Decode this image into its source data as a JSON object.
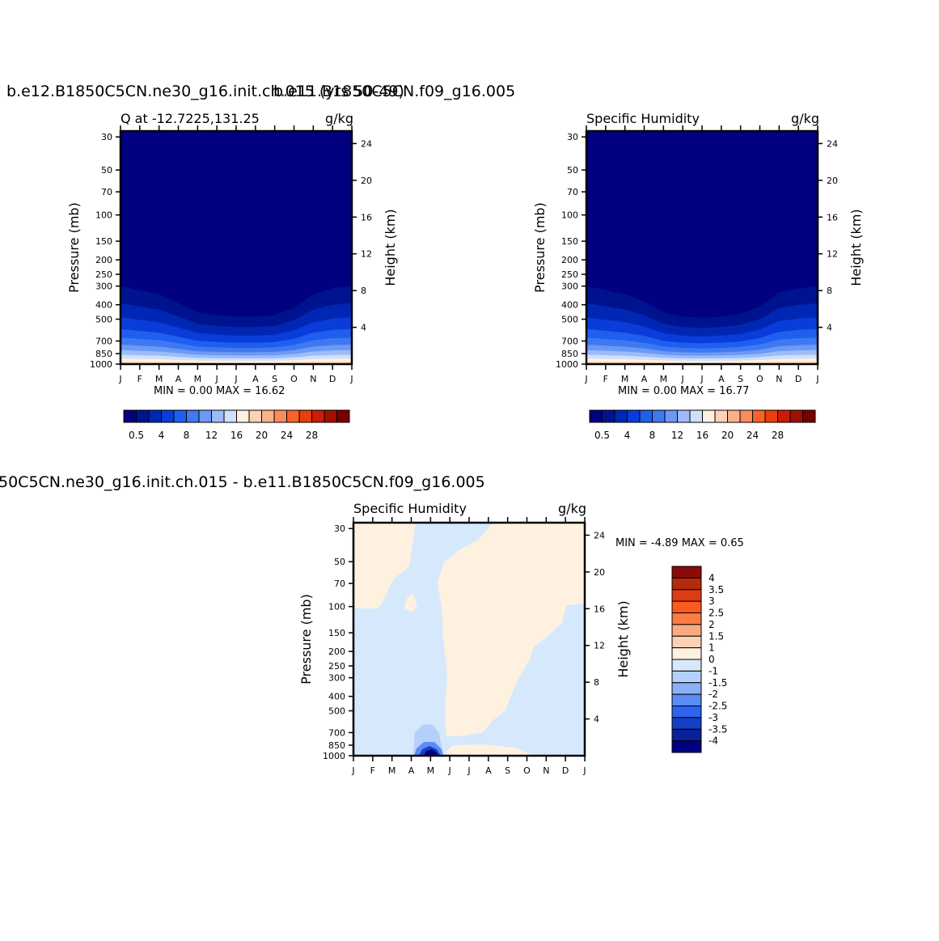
{
  "panels": {
    "top_left": {
      "case_title": "b.e12.B1850C5CN.ne30_g16.init.ch.015 (yrs 50-49)",
      "left_title": "Q at -12.7225,131.25",
      "units": "g/kg",
      "minmax": "MIN =    0.00 MAX =   16.62"
    },
    "top_right": {
      "case_title": "b.e11.B1850C5CN.f09_g16.005",
      "left_title": "Specific Humidity",
      "units": "g/kg",
      "minmax": "MIN =    0.00 MAX =   16.77"
    },
    "bottom": {
      "case_title": "50C5CN.ne30_g16.init.ch.015 - b.e11.B1850C5CN.f09_g16.005",
      "left_title": "Specific Humidity",
      "units": "g/kg",
      "minmax": "MIN =  -4.89 MAX =    0.65"
    }
  },
  "axes": {
    "ylabel": "Pressure (mb)",
    "y2label": "Height (km)",
    "pressure_ticks": [
      "30",
      "50",
      "70",
      "100",
      "150",
      "200",
      "250",
      "300",
      "400",
      "500",
      "700",
      "850",
      "1000"
    ],
    "height_ticks": [
      "24",
      "20",
      "16",
      "12",
      "8",
      "4"
    ],
    "month_ticks": [
      "J",
      "F",
      "M",
      "A",
      "M",
      "J",
      "J",
      "A",
      "S",
      "O",
      "N",
      "D",
      "J"
    ]
  },
  "colorbars": {
    "abs_labels": [
      "0.5",
      "4",
      "8",
      "12",
      "16",
      "20",
      "24",
      "28"
    ],
    "abs_colors": [
      "#000080",
      "#00138f",
      "#0027b3",
      "#0a3cd9",
      "#1f5ff0",
      "#3e79f2",
      "#6b99f5",
      "#9dbcf7",
      "#cfe0fa",
      "#fff1e0",
      "#fcd2b4",
      "#fcb18a",
      "#fc8b5c",
      "#fa6229",
      "#eb3d0d",
      "#c81e05",
      "#a00f00",
      "#780000"
    ],
    "diff_labels": [
      "4",
      "3.5",
      "3",
      "2.5",
      "2",
      "1.5",
      "1",
      "0",
      "-1",
      "-1.5",
      "-2",
      "-2.5",
      "-3",
      "-3.5",
      "-4"
    ],
    "diff_colors": [
      "#8c0a0a",
      "#b42a0a",
      "#dc3c14",
      "#fa5a1e",
      "#fa7c46",
      "#fcaa82",
      "#fcd2b4",
      "#fff1e0",
      "#d6e8fc",
      "#b4d0fa",
      "#8cb0f8",
      "#5a8cf5",
      "#2d64f0",
      "#1440c8",
      "#0a2096",
      "#000080"
    ]
  },
  "chart_data": [
    {
      "type": "heatmap",
      "title": "b.e12.B1850C5CN.ne30_g16.init.ch.015 (yrs 50-49)",
      "subtitle": "Q at -12.7225,131.25",
      "units": "g/kg",
      "x": [
        "J",
        "F",
        "M",
        "A",
        "M",
        "J",
        "J",
        "A",
        "S",
        "O",
        "N",
        "D",
        "J"
      ],
      "y_pressure_mb": [
        30,
        50,
        70,
        100,
        150,
        200,
        250,
        300,
        400,
        500,
        700,
        850,
        1000
      ],
      "y2_height_km": [
        24,
        20,
        16,
        12,
        8,
        4
      ],
      "xlabel": "",
      "ylabel": "Pressure (mb)",
      "y2label": "Height (km)",
      "min": 0.0,
      "max": 16.62,
      "moisture_top_pressure_mb": [
        300,
        320,
        340,
        390,
        450,
        470,
        480,
        480,
        470,
        420,
        340,
        310,
        300
      ]
    },
    {
      "type": "heatmap",
      "title": "b.e11.B1850C5CN.f09_g16.005",
      "subtitle": "Specific Humidity",
      "units": "g/kg",
      "x": [
        "J",
        "F",
        "M",
        "A",
        "M",
        "J",
        "J",
        "A",
        "S",
        "O",
        "N",
        "D",
        "J"
      ],
      "y_pressure_mb": [
        30,
        50,
        70,
        100,
        150,
        200,
        250,
        300,
        400,
        500,
        700,
        850,
        1000
      ],
      "y2_height_km": [
        24,
        20,
        16,
        12,
        8,
        4
      ],
      "xlabel": "",
      "ylabel": "Pressure (mb)",
      "y2label": "Height (km)",
      "min": 0.0,
      "max": 16.77,
      "moisture_top_pressure_mb": [
        300,
        320,
        340,
        380,
        450,
        480,
        490,
        480,
        460,
        410,
        330,
        310,
        300
      ]
    },
    {
      "type": "heatmap",
      "title": "50C5CN.ne30_g16.init.ch.015 - b.e11.B1850C5CN.f09_g16.005",
      "subtitle": "Specific Humidity",
      "units": "g/kg",
      "x": [
        "J",
        "F",
        "M",
        "A",
        "M",
        "J",
        "J",
        "A",
        "S",
        "O",
        "N",
        "D",
        "J"
      ],
      "y_pressure_mb": [
        30,
        50,
        70,
        100,
        150,
        200,
        250,
        300,
        400,
        500,
        700,
        850,
        1000
      ],
      "y2_height_km": [
        24,
        20,
        16,
        12,
        8,
        4
      ],
      "xlabel": "",
      "ylabel": "Pressure (mb)",
      "y2label": "Height (km)",
      "min": -4.89,
      "max": 0.65,
      "minimum_location": {
        "month": "M",
        "pressure_mb": 1000
      }
    }
  ]
}
